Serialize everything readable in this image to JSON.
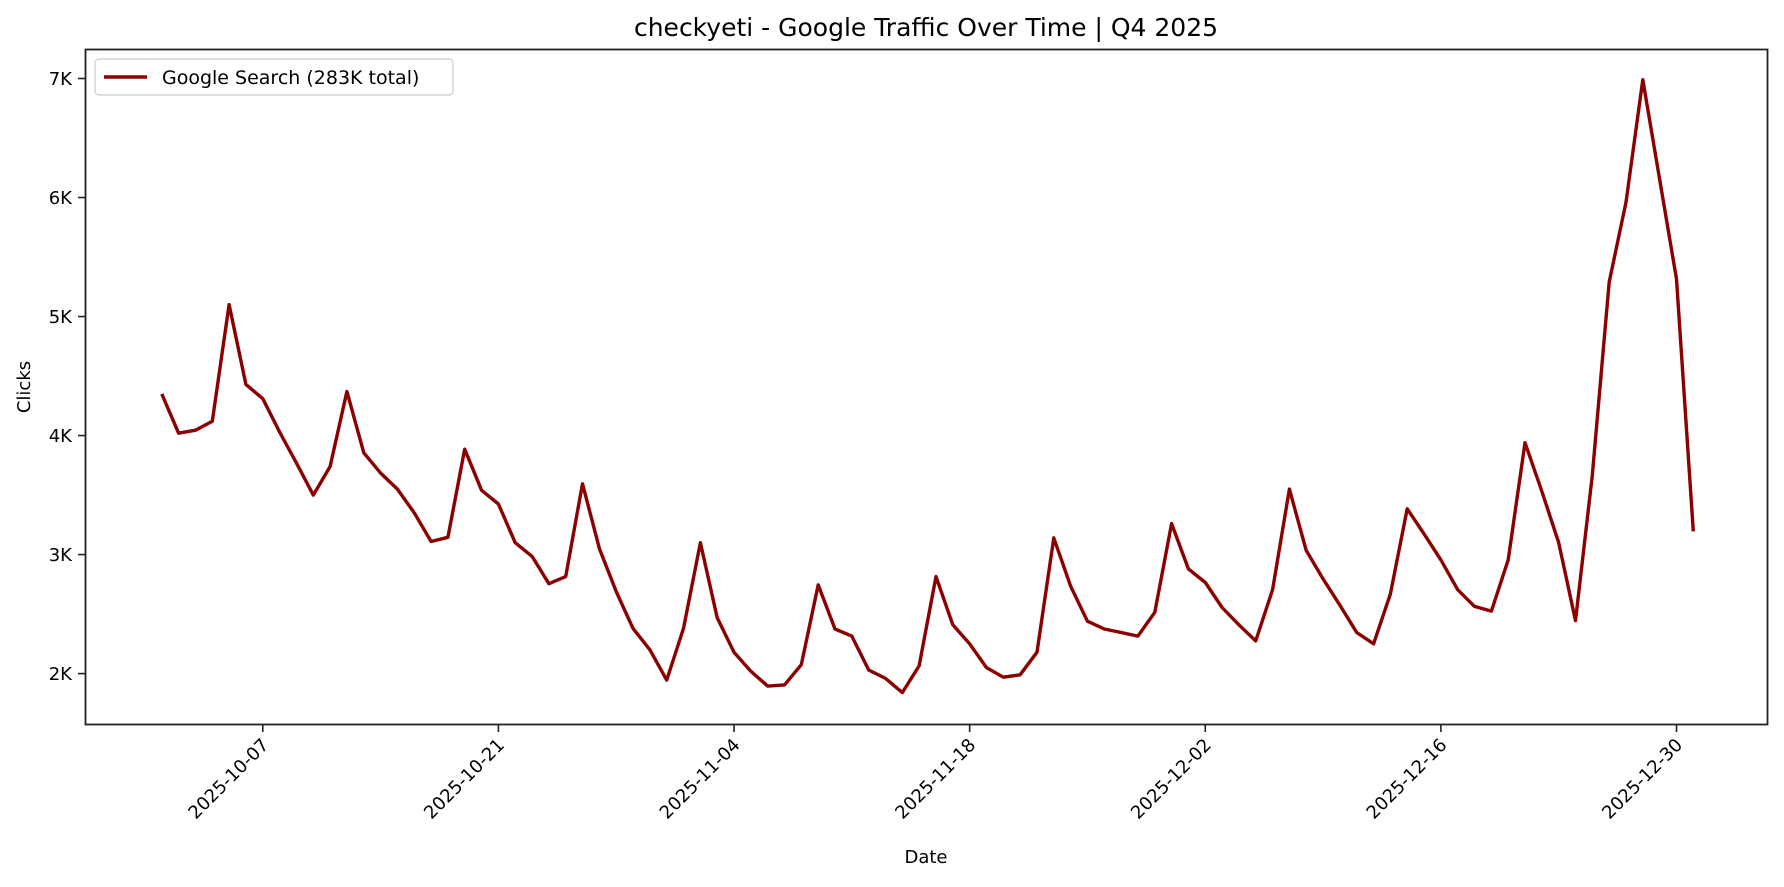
{
  "chart_data": {
    "type": "line",
    "title": "checkyeti - Google Traffic Over Time | Q4 2025",
    "xlabel": "Date",
    "ylabel": "Clicks",
    "ylim": [
      1550,
      7250
    ],
    "yticks": [
      2000,
      3000,
      4000,
      5000,
      6000,
      7000
    ],
    "ytick_labels": [
      "2K",
      "3K",
      "4K",
      "5K",
      "6K",
      "7K"
    ],
    "xtick_labels": [
      "2025-10-07",
      "2025-10-21",
      "2025-11-04",
      "2025-11-18",
      "2025-12-02",
      "2025-12-16",
      "2025-12-30"
    ],
    "grid": false,
    "legend_position": "upper left",
    "color": "#8b0000",
    "x_start": "2025-10-01",
    "x_end": "2025-12-31",
    "series": [
      {
        "name": "Google Search (283K total)",
        "values": [
          4350,
          4020,
          4045,
          4120,
          5100,
          4430,
          4310,
          4030,
          3770,
          3500,
          3740,
          4370,
          3855,
          3685,
          3550,
          3350,
          3110,
          3145,
          3885,
          3540,
          3425,
          3100,
          2985,
          2755,
          2815,
          3595,
          3050,
          2690,
          2380,
          2200,
          1945,
          2380,
          3100,
          2470,
          2180,
          2020,
          1895,
          1905,
          2075,
          2745,
          2375,
          2315,
          2030,
          1960,
          1840,
          2065,
          2815,
          2410,
          2250,
          2050,
          1970,
          1990,
          2180,
          3140,
          2735,
          2440,
          2375,
          2345,
          2315,
          2515,
          3260,
          2880,
          2765,
          2555,
          2410,
          2275,
          2705,
          3550,
          3035,
          2795,
          2575,
          2345,
          2250,
          2670,
          3385,
          3175,
          2955,
          2705,
          2565,
          2525,
          2955,
          3940,
          3530,
          3100,
          2445,
          3665,
          5290,
          5960,
          6990,
          6150,
          5315,
          3195
        ]
      }
    ]
  },
  "legend": {
    "label": "Google Search (283K total)"
  }
}
